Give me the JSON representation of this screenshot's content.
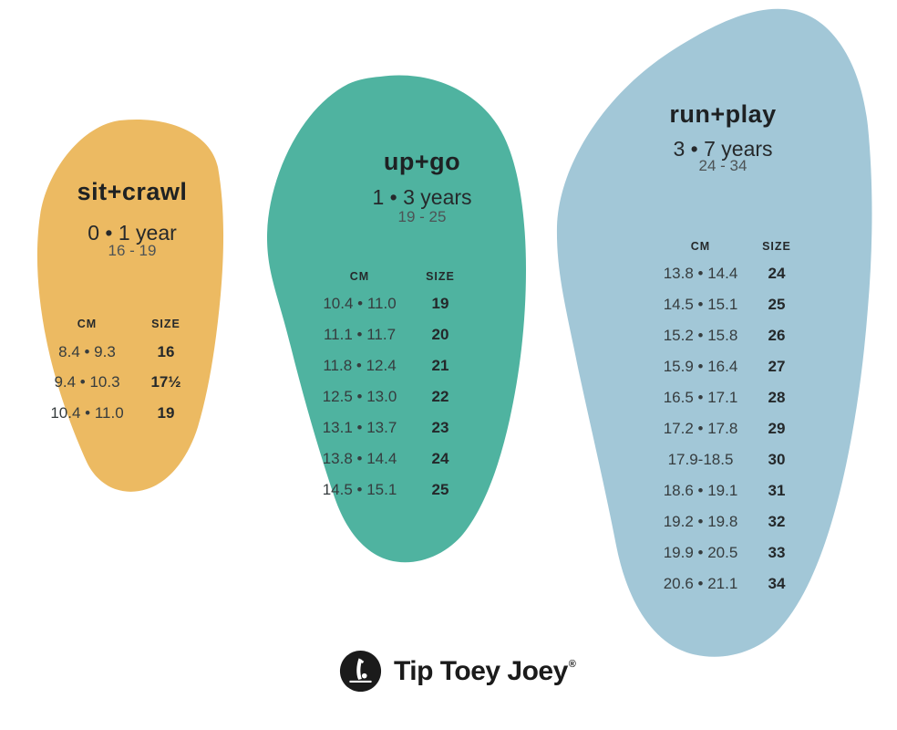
{
  "page": {
    "background": "#ffffff"
  },
  "panels": [
    {
      "id": "sit-crawl",
      "title": "sit+crawl",
      "age": "0 • 1 year",
      "size_range": "16 - 19",
      "color": "#ecba62",
      "columns": {
        "cm": "CM",
        "size": "SIZE"
      },
      "rows": [
        {
          "cm": "8.4 • 9.3",
          "size": "16"
        },
        {
          "cm": "9.4 • 10.3",
          "size": "17½"
        },
        {
          "cm": "10.4 • 11.0",
          "size": "19"
        }
      ]
    },
    {
      "id": "up-go",
      "title": "up+go",
      "age": "1 • 3 years",
      "size_range": "19 - 25",
      "color": "#4fb3a0",
      "columns": {
        "cm": "CM",
        "size": "SIZE"
      },
      "rows": [
        {
          "cm": "10.4 • 11.0",
          "size": "19"
        },
        {
          "cm": "11.1 • 11.7",
          "size": "20"
        },
        {
          "cm": "11.8 • 12.4",
          "size": "21"
        },
        {
          "cm": "12.5 • 13.0",
          "size": "22"
        },
        {
          "cm": "13.1 • 13.7",
          "size": "23"
        },
        {
          "cm": "13.8 • 14.4",
          "size": "24"
        },
        {
          "cm": "14.5 • 15.1",
          "size": "25"
        }
      ]
    },
    {
      "id": "run-play",
      "title": "run+play",
      "age": "3 • 7 years",
      "size_range": "24 - 34",
      "color": "#a2c7d7",
      "columns": {
        "cm": "CM",
        "size": "SIZE"
      },
      "rows": [
        {
          "cm": "13.8 • 14.4",
          "size": "24"
        },
        {
          "cm": "14.5 • 15.1",
          "size": "25"
        },
        {
          "cm": "15.2 • 15.8",
          "size": "26"
        },
        {
          "cm": "15.9 • 16.4",
          "size": "27"
        },
        {
          "cm": "16.5 • 17.1",
          "size": "28"
        },
        {
          "cm": "17.2 • 17.8",
          "size": "29"
        },
        {
          "cm": "17.9-18.5",
          "size": "30"
        },
        {
          "cm": "18.6 • 19.1",
          "size": "31"
        },
        {
          "cm": "19.2 • 19.8",
          "size": "32"
        },
        {
          "cm": "19.9 • 20.5",
          "size": "33"
        },
        {
          "cm": "20.6 • 21.1",
          "size": "34"
        }
      ]
    }
  ],
  "footer": {
    "brand": "Tip Toey Joey",
    "registered_mark": "®",
    "icon_color": "#1b1b1b"
  }
}
